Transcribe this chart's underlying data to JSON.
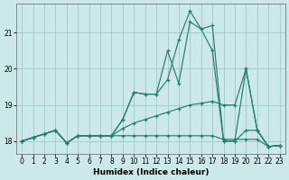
{
  "xlabel": "Humidex (Indice chaleur)",
  "background_color": "#cce8e8",
  "grid_color": "#99cccc",
  "line_color": "#2a7a70",
  "xlim": [
    -0.5,
    23.5
  ],
  "ylim": [
    17.65,
    21.8
  ],
  "yticks": [
    18,
    19,
    20,
    21
  ],
  "xticks": [
    0,
    1,
    2,
    3,
    4,
    5,
    6,
    7,
    8,
    9,
    10,
    11,
    12,
    13,
    14,
    15,
    16,
    17,
    18,
    19,
    20,
    21,
    22,
    23
  ],
  "series": [
    [
      18.0,
      18.1,
      18.2,
      18.3,
      17.95,
      18.15,
      18.15,
      18.15,
      18.15,
      18.6,
      19.35,
      19.3,
      19.3,
      19.7,
      20.8,
      21.6,
      21.1,
      21.2,
      18.0,
      18.0,
      20.0,
      18.3,
      17.85,
      17.88
    ],
    [
      18.0,
      18.1,
      18.2,
      18.3,
      17.95,
      18.15,
      18.15,
      18.15,
      18.15,
      18.6,
      19.35,
      19.3,
      19.3,
      20.5,
      19.6,
      21.3,
      21.1,
      20.5,
      18.0,
      18.0,
      18.3,
      18.3,
      17.85,
      17.88
    ],
    [
      18.0,
      18.1,
      18.2,
      18.3,
      17.95,
      18.15,
      18.15,
      18.15,
      18.15,
      18.35,
      18.5,
      18.6,
      18.7,
      18.8,
      18.9,
      19.0,
      19.05,
      19.1,
      19.0,
      19.0,
      20.0,
      18.3,
      17.85,
      17.88
    ],
    [
      18.0,
      18.1,
      18.2,
      18.3,
      17.95,
      18.15,
      18.15,
      18.15,
      18.15,
      18.15,
      18.15,
      18.15,
      18.15,
      18.15,
      18.15,
      18.15,
      18.15,
      18.15,
      18.05,
      18.05,
      18.05,
      18.05,
      17.85,
      17.88
    ]
  ]
}
